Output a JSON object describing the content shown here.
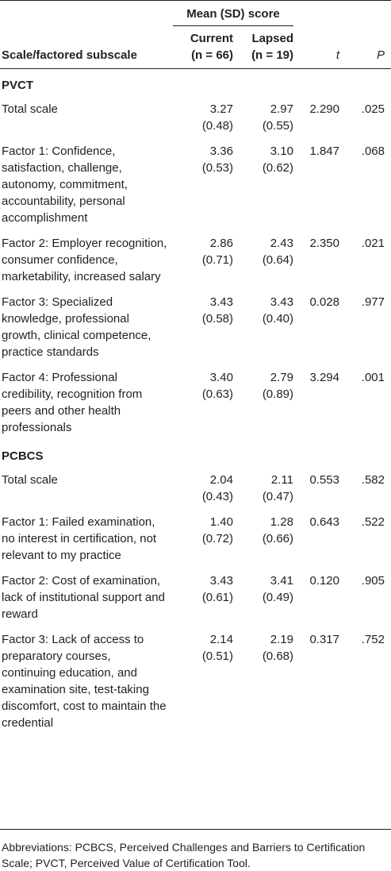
{
  "table": {
    "group_header": "Mean (SD) score",
    "columns": {
      "label": "Scale/factored subscale",
      "current": [
        "Current",
        "(n = 66)"
      ],
      "lapsed": [
        "Lapsed",
        "(n = 19)"
      ],
      "t": "t",
      "p": "P"
    },
    "sections": [
      {
        "title": "PVCT",
        "rows": [
          {
            "label": "Total scale",
            "current": [
              "3.27",
              "(0.48)"
            ],
            "lapsed": [
              "2.97",
              "(0.55)"
            ],
            "t": "2.290",
            "p": ".025"
          },
          {
            "label": "Factor 1: Confidence, satisfaction, challenge, autonomy, commitment, accountability, personal accomplishment",
            "current": [
              "3.36",
              "(0.53)"
            ],
            "lapsed": [
              "3.10",
              "(0.62)"
            ],
            "t": "1.847",
            "p": ".068"
          },
          {
            "label": "Factor 2: Employer recognition, consumer confidence, marketability, increased salary",
            "current": [
              "2.86",
              "(0.71)"
            ],
            "lapsed": [
              "2.43",
              "(0.64)"
            ],
            "t": "2.350",
            "p": ".021"
          },
          {
            "label": "Factor 3: Specialized knowledge, professional growth, clinical competence, practice standards",
            "current": [
              "3.43",
              "(0.58)"
            ],
            "lapsed": [
              "3.43",
              "(0.40)"
            ],
            "t": "0.028",
            "p": ".977"
          },
          {
            "label": "Factor 4: Professional credibility, recognition from peers and other health professionals",
            "current": [
              "3.40",
              "(0.63)"
            ],
            "lapsed": [
              "2.79",
              "(0.89)"
            ],
            "t": "3.294",
            "p": ".001"
          }
        ]
      },
      {
        "title": "PCBCS",
        "rows": [
          {
            "label": "Total scale",
            "current": [
              "2.04",
              "(0.43)"
            ],
            "lapsed": [
              "2.11",
              "(0.47)"
            ],
            "t": "0.553",
            "p": ".582"
          },
          {
            "label": "Factor 1: Failed examination, no interest in certification, not relevant to my practice",
            "current": [
              "1.40",
              "(0.72)"
            ],
            "lapsed": [
              "1.28",
              "(0.66)"
            ],
            "t": "0.643",
            "p": ".522"
          },
          {
            "label": "Factor 2: Cost of examination, lack of institutional support and reward",
            "current": [
              "3.43",
              "(0.61)"
            ],
            "lapsed": [
              "3.41",
              "(0.49)"
            ],
            "t": "0.120",
            "p": ".905"
          },
          {
            "label": "Factor 3: Lack of access to preparatory courses, continuing education, and examination site, test-taking discomfort, cost to maintain the credential",
            "current": [
              "2.14",
              "(0.51)"
            ],
            "lapsed": [
              "2.19",
              "(0.68)"
            ],
            "t": "0.317",
            "p": ".752"
          }
        ]
      }
    ]
  },
  "footnote": "Abbreviations: PCBCS, Perceived Challenges and Barriers to Certification Scale; PVCT, Perceived Value of Certification Tool."
}
